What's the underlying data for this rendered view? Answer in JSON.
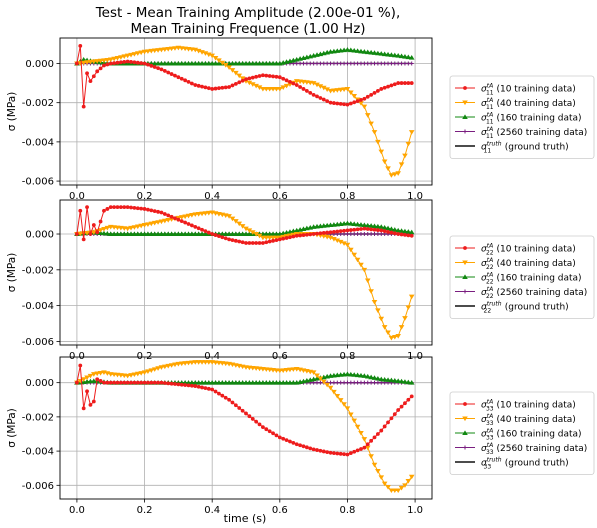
{
  "figure": {
    "title_line1": "Test - Mean Training Amplitude (2.00e-01 %),",
    "title_line2": "Mean Training Frequence (1.00 Hz)",
    "xlabel": "time (s)"
  },
  "colors": {
    "red": "#ee1c1c",
    "orange": "#ffa500",
    "green": "#118811",
    "purple": "#7a1e80",
    "black": "#111111",
    "grid": "#b0b0b0"
  },
  "chart_data": [
    {
      "type": "line",
      "ylabel": "σ (MPa)",
      "xlim": [
        -0.05,
        1.05
      ],
      "ylim": [
        -0.0062,
        0.0013
      ],
      "xticks": [
        "0.0",
        "0.2",
        "0.4",
        "0.6",
        "0.8",
        "1.0"
      ],
      "yticks": [
        "0.000",
        "-0.002",
        "-0.004",
        "-0.006"
      ],
      "grid": true,
      "legend_position": "outside-right",
      "series": [
        {
          "name": "σ11 (10 training data)",
          "sub": "11",
          "sup": "tA",
          "suffix": " (10 training data)",
          "color": "red",
          "marker": "circle",
          "x": [
            0.0,
            0.01,
            0.02,
            0.03,
            0.04,
            0.06,
            0.08,
            0.1,
            0.15,
            0.2,
            0.25,
            0.3,
            0.35,
            0.4,
            0.45,
            0.5,
            0.55,
            0.6,
            0.65,
            0.7,
            0.75,
            0.8,
            0.85,
            0.9,
            0.95,
            0.99
          ],
          "y": [
            0.0,
            0.0009,
            -0.0022,
            -0.0005,
            -0.0009,
            -0.0004,
            -0.0001,
            0.0,
            0.0001,
            0.0,
            -0.0003,
            -0.0007,
            -0.0011,
            -0.0013,
            -0.0012,
            -0.0008,
            -0.0006,
            -0.0007,
            -0.0011,
            -0.0016,
            -0.002,
            -0.0021,
            -0.0018,
            -0.0013,
            -0.001,
            -0.001
          ]
        },
        {
          "name": "σ11 (40 training data)",
          "sub": "11",
          "sup": "tA",
          "suffix": " (40 training data)",
          "color": "orange",
          "marker": "triangle-down",
          "x": [
            0.0,
            0.05,
            0.1,
            0.15,
            0.2,
            0.25,
            0.3,
            0.35,
            0.4,
            0.45,
            0.5,
            0.55,
            0.6,
            0.65,
            0.7,
            0.75,
            0.8,
            0.85,
            0.88,
            0.91,
            0.93,
            0.95,
            0.97,
            0.99
          ],
          "y": [
            0.0,
            0.0001,
            0.0002,
            0.0004,
            0.0006,
            0.0007,
            0.0008,
            0.0007,
            0.0004,
            -0.0002,
            -0.0009,
            -0.0013,
            -0.0013,
            -0.0009,
            -0.001,
            -0.0014,
            -0.0013,
            -0.0022,
            -0.0035,
            -0.005,
            -0.0057,
            -0.0056,
            -0.0047,
            -0.0035
          ]
        },
        {
          "name": "σ11 (160 training data)",
          "sub": "11",
          "sup": "tA",
          "suffix": " (160 training data)",
          "color": "green",
          "marker": "triangle-up",
          "x": [
            0.0,
            0.02,
            0.05,
            0.1,
            0.2,
            0.3,
            0.4,
            0.5,
            0.6,
            0.65,
            0.7,
            0.75,
            0.8,
            0.85,
            0.9,
            0.95,
            0.99
          ],
          "y": [
            0.0,
            0.0002,
            0.0001,
            0.0,
            0.0,
            0.0,
            0.0,
            0.0,
            0.0,
            0.0002,
            0.0004,
            0.0006,
            0.0007,
            0.0006,
            0.0005,
            0.0004,
            0.0003
          ]
        },
        {
          "name": "σ11 (2560 training data)",
          "sub": "11",
          "sup": "tA",
          "suffix": " (2560 training data)",
          "color": "purple",
          "marker": "plus",
          "x": [
            0.0,
            0.2,
            0.4,
            0.6,
            0.8,
            0.99
          ],
          "y": [
            0.0,
            0.0,
            0.0,
            0.0,
            0.0,
            0.0
          ]
        },
        {
          "name": "σ11 (ground truth)",
          "sub": "11",
          "sup": "truth",
          "suffix": " (ground truth)",
          "color": "black",
          "marker": "none",
          "x": [
            0.0,
            0.99
          ],
          "y": [
            0.0,
            0.0
          ]
        }
      ]
    },
    {
      "type": "line",
      "ylabel": "σ (MPa)",
      "xlim": [
        -0.05,
        1.05
      ],
      "ylim": [
        -0.0062,
        0.0019
      ],
      "xticks": [
        "0.0",
        "0.2",
        "0.4",
        "0.6",
        "0.8",
        "1.0"
      ],
      "yticks": [
        "0.000",
        "-0.002",
        "-0.004",
        "-0.006"
      ],
      "grid": true,
      "legend_position": "outside-right",
      "series": [
        {
          "name": "σ22 (10 training data)",
          "sub": "22",
          "sup": "tA",
          "suffix": " (10 training data)",
          "color": "red",
          "marker": "circle",
          "x": [
            0.0,
            0.01,
            0.02,
            0.03,
            0.04,
            0.05,
            0.06,
            0.08,
            0.1,
            0.15,
            0.2,
            0.25,
            0.3,
            0.35,
            0.4,
            0.45,
            0.5,
            0.55,
            0.6,
            0.65,
            0.7,
            0.75,
            0.8,
            0.85,
            0.9,
            0.95,
            0.99
          ],
          "y": [
            0.0,
            0.0013,
            -0.0003,
            0.0015,
            0.0,
            0.0005,
            0.0001,
            0.0013,
            0.0015,
            0.0015,
            0.0014,
            0.0012,
            0.0008,
            0.0004,
            0.0,
            -0.0003,
            -0.0005,
            -0.0005,
            -0.0003,
            -0.0001,
            0.0,
            0.0001,
            0.0002,
            0.0003,
            0.0002,
            0.0,
            -0.0001
          ]
        },
        {
          "name": "σ22 (40 training data)",
          "sub": "22",
          "sup": "tA",
          "suffix": " (40 training data)",
          "color": "orange",
          "marker": "triangle-down",
          "x": [
            0.0,
            0.05,
            0.1,
            0.15,
            0.2,
            0.25,
            0.3,
            0.35,
            0.4,
            0.45,
            0.5,
            0.55,
            0.6,
            0.65,
            0.7,
            0.75,
            0.8,
            0.85,
            0.88,
            0.91,
            0.93,
            0.95,
            0.97,
            0.99
          ],
          "y": [
            0.0,
            0.0001,
            0.0004,
            0.0003,
            0.0005,
            0.0007,
            0.0009,
            0.0011,
            0.0012,
            0.001,
            0.0003,
            -0.0002,
            -0.0002,
            0.0,
            0.0,
            -0.0002,
            -0.0006,
            -0.002,
            -0.0038,
            -0.0052,
            -0.0058,
            -0.0057,
            -0.0047,
            -0.0035
          ]
        },
        {
          "name": "σ22 (160 training data)",
          "sub": "22",
          "sup": "tA",
          "suffix": " (160 training data)",
          "color": "green",
          "marker": "triangle-up",
          "x": [
            0.0,
            0.05,
            0.1,
            0.2,
            0.3,
            0.4,
            0.5,
            0.6,
            0.65,
            0.7,
            0.75,
            0.8,
            0.85,
            0.9,
            0.95,
            0.99
          ],
          "y": [
            0.0,
            0.0001,
            0.0,
            0.0,
            0.0,
            0.0,
            0.0,
            0.0,
            0.0002,
            0.0004,
            0.0005,
            0.0006,
            0.0005,
            0.0004,
            0.0002,
            0.0001
          ]
        },
        {
          "name": "σ22 (2560 training data)",
          "sub": "22",
          "sup": "tA",
          "suffix": " (2560 training data)",
          "color": "purple",
          "marker": "plus",
          "x": [
            0.0,
            0.2,
            0.4,
            0.6,
            0.8,
            0.99
          ],
          "y": [
            0.0,
            0.0,
            0.0,
            0.0,
            0.0,
            0.0
          ]
        },
        {
          "name": "σ22 (ground truth)",
          "sub": "22",
          "sup": "truth",
          "suffix": " (ground truth)",
          "color": "black",
          "marker": "none",
          "x": [
            0.0,
            0.99
          ],
          "y": [
            0.0,
            0.0
          ]
        }
      ]
    },
    {
      "type": "line",
      "ylabel": "σ (MPa)",
      "xlim": [
        -0.05,
        1.05
      ],
      "ylim": [
        -0.0068,
        0.0015
      ],
      "xticks": [
        "0.0",
        "0.2",
        "0.4",
        "0.6",
        "0.8",
        "1.0"
      ],
      "yticks": [
        "0.000",
        "-0.002",
        "-0.004",
        "-0.006"
      ],
      "grid": true,
      "legend_position": "outside-right",
      "series": [
        {
          "name": "σ33 (10 training data)",
          "sub": "33",
          "sup": "tA",
          "suffix": " (10 training data)",
          "color": "red",
          "marker": "circle",
          "x": [
            0.0,
            0.01,
            0.02,
            0.03,
            0.04,
            0.05,
            0.06,
            0.08,
            0.1,
            0.15,
            0.2,
            0.25,
            0.3,
            0.35,
            0.4,
            0.45,
            0.5,
            0.55,
            0.6,
            0.65,
            0.7,
            0.75,
            0.8,
            0.85,
            0.9,
            0.95,
            0.99
          ],
          "y": [
            0.0,
            0.001,
            -0.0015,
            -0.0005,
            -0.0013,
            -0.0011,
            0.0002,
            0.0,
            0.0,
            0.0,
            0.0,
            0.0,
            -0.0001,
            -0.0002,
            -0.0004,
            -0.001,
            -0.0018,
            -0.0026,
            -0.0032,
            -0.0036,
            -0.0039,
            -0.0041,
            -0.0042,
            -0.0038,
            -0.0028,
            -0.0016,
            -0.0008
          ]
        },
        {
          "name": "σ33 (40 training data)",
          "sub": "33",
          "sup": "tA",
          "suffix": " (40 training data)",
          "color": "orange",
          "marker": "triangle-down",
          "x": [
            0.0,
            0.05,
            0.08,
            0.1,
            0.15,
            0.2,
            0.25,
            0.3,
            0.35,
            0.4,
            0.45,
            0.5,
            0.55,
            0.6,
            0.65,
            0.7,
            0.75,
            0.8,
            0.85,
            0.88,
            0.91,
            0.93,
            0.95,
            0.97,
            0.99
          ],
          "y": [
            0.0,
            0.0005,
            0.0006,
            0.0005,
            0.0004,
            0.0006,
            0.0009,
            0.0011,
            0.0012,
            0.0012,
            0.0011,
            0.0009,
            0.0008,
            0.0007,
            0.0008,
            0.0006,
            -0.0003,
            -0.0015,
            -0.0033,
            -0.0048,
            -0.0059,
            -0.0063,
            -0.0063,
            -0.006,
            -0.0055
          ]
        },
        {
          "name": "σ33 (160 training data)",
          "sub": "33",
          "sup": "tA",
          "suffix": " (160 training data)",
          "color": "green",
          "marker": "triangle-up",
          "x": [
            0.0,
            0.05,
            0.1,
            0.2,
            0.3,
            0.4,
            0.5,
            0.6,
            0.65,
            0.7,
            0.75,
            0.8,
            0.85,
            0.9,
            0.95,
            0.99
          ],
          "y": [
            0.0,
            0.0001,
            0.0,
            0.0,
            0.0,
            0.0,
            0.0,
            0.0,
            0.0,
            0.0002,
            0.0004,
            0.0005,
            0.0004,
            0.0002,
            0.0001,
            0.0
          ]
        },
        {
          "name": "σ33 (2560 training data)",
          "sub": "33",
          "sup": "tA",
          "suffix": " (2560 training data)",
          "color": "purple",
          "marker": "plus",
          "x": [
            0.0,
            0.2,
            0.4,
            0.6,
            0.8,
            0.99
          ],
          "y": [
            0.0,
            0.0,
            0.0,
            0.0,
            0.0,
            0.0
          ]
        },
        {
          "name": "σ33 (ground truth)",
          "sub": "33",
          "sup": "truth",
          "suffix": " (ground truth)",
          "color": "black",
          "marker": "none",
          "x": [
            0.0,
            0.99
          ],
          "y": [
            0.0,
            0.0
          ]
        }
      ]
    }
  ]
}
